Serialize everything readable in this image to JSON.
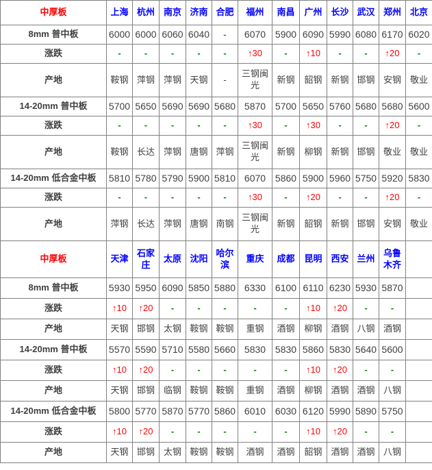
{
  "colors": {
    "section_title": "#fe0000",
    "city_header": "#0000fe",
    "change_up": "#fe0000",
    "change_none": "#008000",
    "value_text": "#404040",
    "grid_line": "#808080",
    "outer_border": "#000000",
    "background": "#ffffff"
  },
  "table": {
    "sections": [
      {
        "title": "中厚板",
        "cities": [
          "上海",
          "杭州",
          "南京",
          "济南",
          "合肥",
          "福州",
          "南昌",
          "广州",
          "长沙",
          "武汉",
          "郑州",
          "北京"
        ],
        "rows": [
          {
            "label": "8mm 普中板",
            "type": "price",
            "values": [
              "6000",
              "6000",
              "6060",
              "6040",
              "-",
              "6070",
              "5900",
              "6090",
              "5990",
              "6080",
              "6170",
              "6020"
            ]
          },
          {
            "label": "涨跌",
            "type": "change",
            "values": [
              "-",
              "-",
              "-",
              "-",
              "-",
              "↑30",
              "-",
              "↑10",
              "-",
              "-",
              "↑20",
              "-"
            ]
          },
          {
            "label": "产地",
            "type": "origin",
            "values": [
              "鞍钢",
              "萍钢",
              "萍钢",
              "天钢",
              "-",
              "三钢闽光",
              "新钢",
              "韶钢",
              "新钢",
              "邯钢",
              "安钢",
              "敬业"
            ]
          },
          {
            "label": "14-20mm 普中板",
            "type": "price",
            "values": [
              "5700",
              "5650",
              "5690",
              "5690",
              "5680",
              "5870",
              "5700",
              "5650",
              "5760",
              "5680",
              "5680",
              "5600"
            ]
          },
          {
            "label": "涨跌",
            "type": "change",
            "values": [
              "-",
              "-",
              "-",
              "-",
              "-",
              "↑30",
              "-",
              "↑30",
              "-",
              "-",
              "↑20",
              "-"
            ]
          },
          {
            "label": "产地",
            "type": "origin",
            "values": [
              "鞍钢",
              "长达",
              "萍钢",
              "唐钢",
              "萍钢",
              "三钢闽光",
              "新钢",
              "柳钢",
              "新钢",
              "邯钢",
              "敬业",
              "敬业"
            ]
          },
          {
            "label": "14-20mm 低合金中板",
            "type": "price",
            "values": [
              "5810",
              "5780",
              "5790",
              "5900",
              "5810",
              "6070",
              "5860",
              "5900",
              "5960",
              "5750",
              "5920",
              "5830"
            ]
          },
          {
            "label": "涨跌",
            "type": "change",
            "values": [
              "-",
              "-",
              "-",
              "-",
              "-",
              "↑30",
              "-",
              "↑20",
              "-",
              "-",
              "↑20",
              "-"
            ]
          },
          {
            "label": "产地",
            "type": "origin",
            "values": [
              "萍钢",
              "长达",
              "萍钢",
              "唐钢",
              "南钢",
              "三钢闽光",
              "新钢",
              "韶钢",
              "新钢",
              "邯钢",
              "安钢",
              "敬业"
            ]
          }
        ]
      },
      {
        "title": "中厚板",
        "cities": [
          "天津",
          "石家庄",
          "太原",
          "沈阳",
          "哈尔滨",
          "重庆",
          "成都",
          "昆明",
          "西安",
          "兰州",
          "乌鲁木齐",
          ""
        ],
        "rows": [
          {
            "label": "8mm 普中板",
            "type": "price",
            "values": [
              "5930",
              "5950",
              "6090",
              "5850",
              "5880",
              "6330",
              "6100",
              "6110",
              "6230",
              "5930",
              "5870",
              ""
            ]
          },
          {
            "label": "涨跌",
            "type": "change",
            "values": [
              "↑10",
              "↑20",
              "-",
              "-",
              "-",
              "-",
              "-",
              "↑10",
              "↑20",
              "-",
              "-",
              ""
            ]
          },
          {
            "label": "产地",
            "type": "origin",
            "values": [
              "天钢",
              "邯钢",
              "太钢",
              "鞍钢",
              "鞍钢",
              "重钢",
              "酒钢",
              "柳钢",
              "酒钢",
              "八钢",
              "酒钢",
              ""
            ]
          },
          {
            "label": "14-20mm 普中板",
            "type": "price",
            "values": [
              "5570",
              "5590",
              "5710",
              "5580",
              "5660",
              "5830",
              "5830",
              "5860",
              "5830",
              "5640",
              "5600",
              ""
            ]
          },
          {
            "label": "涨跌",
            "type": "change",
            "values": [
              "↑10",
              "↑20",
              "-",
              "-",
              "-",
              "-",
              "-",
              "↑10",
              "↑20",
              "-",
              "-",
              ""
            ]
          },
          {
            "label": "产地",
            "type": "origin",
            "values": [
              "天钢",
              "邯钢",
              "临钢",
              "鞍钢",
              "鞍钢",
              "重钢",
              "酒钢",
              "柳钢",
              "酒钢",
              "酒钢",
              "八钢",
              ""
            ]
          },
          {
            "label": "14-20mm 低合金中板",
            "type": "price",
            "values": [
              "5800",
              "5770",
              "5870",
              "5770",
              "5860",
              "6010",
              "6030",
              "6120",
              "5990",
              "5890",
              "5750",
              ""
            ]
          },
          {
            "label": "涨跌",
            "type": "change",
            "values": [
              "↑10",
              "↑20",
              "-",
              "-",
              "-",
              "-",
              "-",
              "↑10",
              "↑20",
              "-",
              "-",
              ""
            ]
          },
          {
            "label": "产地",
            "type": "origin",
            "values": [
              "天钢",
              "邯钢",
              "太钢",
              "鞍钢",
              "鞍钢",
              "酒钢",
              "酒钢",
              "韶钢",
              "酒钢",
              "酒钢",
              "八钢",
              ""
            ]
          }
        ]
      }
    ]
  }
}
